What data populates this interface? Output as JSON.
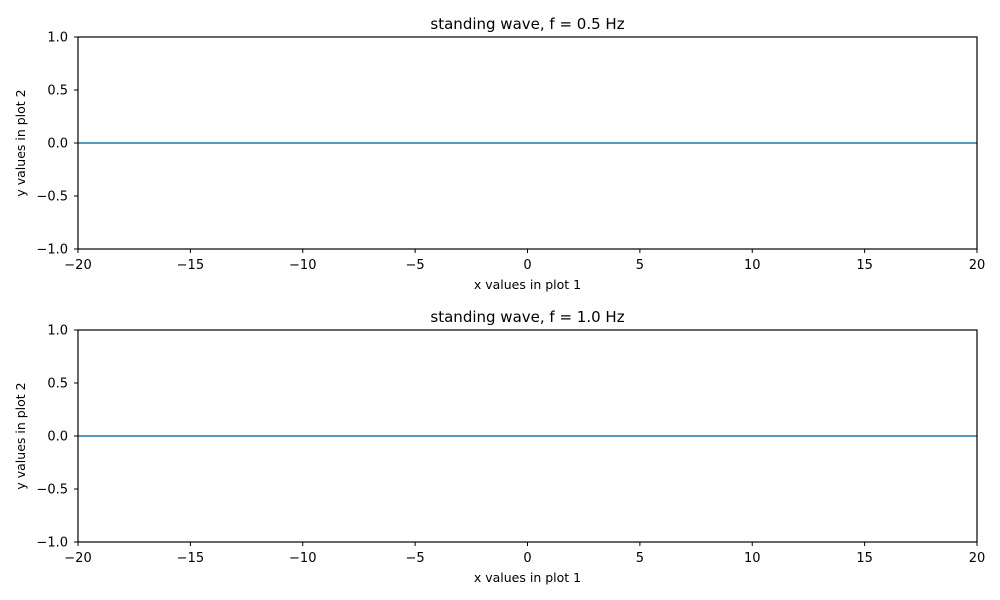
{
  "colors": {
    "line": "#1f77b4",
    "axes": "#000000",
    "background": "#ffffff"
  },
  "chart_data": [
    {
      "type": "line",
      "title": "standing wave, f = 0.5 Hz",
      "xlabel": "x values in plot 1",
      "ylabel": "y values in plot 2",
      "xlim": [
        -20,
        20
      ],
      "ylim": [
        -1.0,
        1.0
      ],
      "xticks": [
        -20,
        -15,
        -10,
        -5,
        0,
        5,
        10,
        15,
        20
      ],
      "xtick_labels": [
        "−20",
        "−15",
        "−10",
        "−5",
        "0",
        "5",
        "10",
        "15",
        "20"
      ],
      "yticks": [
        -1.0,
        -0.5,
        0.0,
        0.5,
        1.0
      ],
      "ytick_labels": [
        "−1.0",
        "−0.5",
        "0.0",
        "0.5",
        "1.0"
      ],
      "grid": false,
      "series": [
        {
          "x": [
            -20,
            20
          ],
          "y": [
            0.0,
            0.0
          ]
        }
      ]
    },
    {
      "type": "line",
      "title": "standing wave, f = 1.0 Hz",
      "xlabel": "x values in plot 1",
      "ylabel": "y values in plot 2",
      "xlim": [
        -20,
        20
      ],
      "ylim": [
        -1.0,
        1.0
      ],
      "xticks": [
        -20,
        -15,
        -10,
        -5,
        0,
        5,
        10,
        15,
        20
      ],
      "xtick_labels": [
        "−20",
        "−15",
        "−10",
        "−5",
        "0",
        "5",
        "10",
        "15",
        "20"
      ],
      "yticks": [
        -1.0,
        -0.5,
        0.0,
        0.5,
        1.0
      ],
      "ytick_labels": [
        "−1.0",
        "−0.5",
        "0.0",
        "0.5",
        "1.0"
      ],
      "grid": false,
      "series": [
        {
          "x": [
            -20,
            20
          ],
          "y": [
            0.0,
            0.0
          ]
        }
      ]
    }
  ]
}
